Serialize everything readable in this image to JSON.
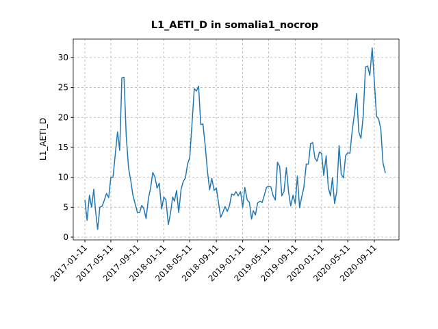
{
  "chart_data": {
    "type": "line",
    "title": "L1_AETI_D in somalia1_nocrop",
    "y_label": "L1_AETI_D",
    "x": [
      "2017-01-11",
      "2017-01-21",
      "2017-02-01",
      "2017-02-11",
      "2017-02-21",
      "2017-03-01",
      "2017-03-11",
      "2017-03-21",
      "2017-04-01",
      "2017-04-11",
      "2017-04-21",
      "2017-05-01",
      "2017-05-11",
      "2017-05-21",
      "2017-06-01",
      "2017-06-11",
      "2017-06-21",
      "2017-07-01",
      "2017-07-11",
      "2017-07-21",
      "2017-08-01",
      "2017-08-11",
      "2017-08-21",
      "2017-09-01",
      "2017-09-11",
      "2017-09-21",
      "2017-10-01",
      "2017-10-11",
      "2017-10-21",
      "2017-11-01",
      "2017-11-11",
      "2017-11-21",
      "2017-12-01",
      "2017-12-11",
      "2017-12-21",
      "2018-01-01",
      "2018-01-11",
      "2018-01-21",
      "2018-02-01",
      "2018-02-11",
      "2018-02-21",
      "2018-03-01",
      "2018-03-11",
      "2018-03-21",
      "2018-04-01",
      "2018-04-11",
      "2018-04-21",
      "2018-05-01",
      "2018-05-11",
      "2018-05-21",
      "2018-06-01",
      "2018-06-11",
      "2018-06-21",
      "2018-07-01",
      "2018-07-11",
      "2018-07-21",
      "2018-08-01",
      "2018-08-11",
      "2018-08-21",
      "2018-09-01",
      "2018-09-11",
      "2018-09-21",
      "2018-10-01",
      "2018-10-11",
      "2018-10-21",
      "2018-11-01",
      "2018-11-11",
      "2018-11-21",
      "2018-12-01",
      "2018-12-11",
      "2018-12-21",
      "2019-01-01",
      "2019-01-11",
      "2019-01-21",
      "2019-02-01",
      "2019-02-11",
      "2019-02-21",
      "2019-03-01",
      "2019-03-11",
      "2019-03-21",
      "2019-04-01",
      "2019-04-11",
      "2019-04-21",
      "2019-05-01",
      "2019-05-11",
      "2019-05-21",
      "2019-06-01",
      "2019-06-11",
      "2019-06-21",
      "2019-07-01",
      "2019-07-11",
      "2019-07-21",
      "2019-08-01",
      "2019-08-11",
      "2019-08-21",
      "2019-09-01",
      "2019-09-11",
      "2019-09-21",
      "2019-10-01",
      "2019-10-11",
      "2019-10-21",
      "2019-11-01",
      "2019-11-11",
      "2019-11-21",
      "2019-12-01",
      "2019-12-11",
      "2019-12-21",
      "2020-01-01",
      "2020-01-11",
      "2020-01-21",
      "2020-02-01",
      "2020-02-11",
      "2020-02-21",
      "2020-03-01",
      "2020-03-11",
      "2020-03-21",
      "2020-04-01",
      "2020-04-11",
      "2020-04-21",
      "2020-05-01",
      "2020-05-11",
      "2020-05-21",
      "2020-06-01",
      "2020-06-11",
      "2020-06-21",
      "2020-07-01",
      "2020-07-11",
      "2020-07-21",
      "2020-08-01",
      "2020-08-11",
      "2020-08-21",
      "2020-09-01",
      "2020-09-11",
      "2020-09-21",
      "2020-10-01",
      "2020-10-11",
      "2020-10-21",
      "2020-11-01"
    ],
    "series": [
      {
        "color": "#1f77b4",
        "values": [
          6.2,
          2.8,
          7.0,
          5.0,
          8.0,
          4.5,
          1.3,
          5.0,
          5.2,
          6.2,
          7.3,
          6.6,
          10.0,
          10.0,
          14.0,
          17.6,
          14.5,
          26.6,
          26.7,
          17.0,
          11.5,
          9.5,
          7.0,
          5.5,
          4.1,
          4.1,
          5.3,
          4.7,
          3.1,
          6.5,
          8.2,
          10.8,
          10.0,
          8.2,
          9.0,
          4.7,
          6.7,
          6.2,
          2.1,
          4.0,
          6.7,
          6.0,
          7.8,
          4.1,
          8.0,
          9.3,
          9.9,
          12.2,
          13.3,
          18.7,
          24.8,
          24.4,
          25.2,
          18.8,
          18.9,
          15.5,
          11.0,
          7.9,
          9.8,
          7.8,
          8.2,
          5.8,
          3.3,
          4.1,
          5.1,
          4.3,
          5.3,
          7.2,
          7.0,
          7.6,
          6.9,
          7.6,
          5.0,
          8.3,
          6.2,
          5.8,
          3.0,
          4.4,
          3.7,
          5.7,
          6.0,
          5.8,
          7.0,
          8.3,
          8.5,
          8.4,
          6.9,
          6.2,
          12.5,
          11.8,
          6.9,
          7.6,
          11.6,
          7.6,
          5.2,
          7.0,
          5.6,
          10.2,
          4.9,
          6.7,
          8.3,
          12.2,
          12.2,
          15.6,
          15.8,
          13.2,
          12.7,
          14.2,
          14.0,
          10.3,
          13.6,
          8.3,
          6.9,
          9.9,
          5.6,
          7.6,
          15.3,
          10.5,
          9.9,
          13.6,
          14.1,
          14.0,
          17.9,
          20.6,
          24.0,
          17.6,
          16.5,
          20.0,
          28.4,
          28.6,
          27.0,
          31.6,
          26.0,
          20.2,
          19.7,
          18.0,
          12.4,
          10.7
        ]
      }
    ],
    "xlim": [
      "2016-11-18",
      "2021-01-03"
    ],
    "xticks": [
      "2017-01-11",
      "2017-05-11",
      "2017-09-11",
      "2018-01-11",
      "2018-05-11",
      "2018-09-11",
      "2019-01-11",
      "2019-05-11",
      "2019-09-11",
      "2020-01-11",
      "2020-05-11",
      "2020-09-11"
    ],
    "ylim": [
      -0.46,
      33.08
    ],
    "yticks": [
      0,
      5,
      10,
      15,
      20,
      25,
      30
    ],
    "grid": true
  }
}
